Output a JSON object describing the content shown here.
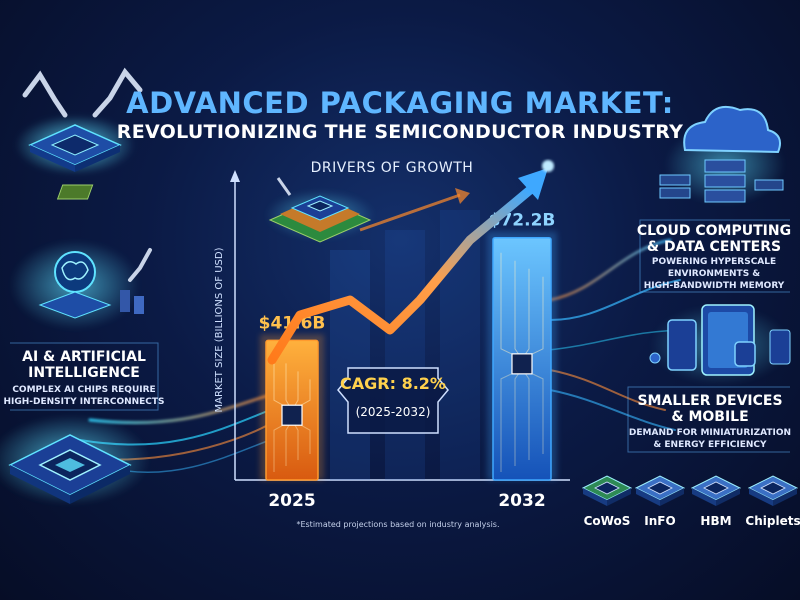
{
  "title": {
    "line1": "ADVANCED PACKAGING MARKET:",
    "line2": "REVOLUTIONIZING THE SEMICONDUCTOR INDUSTRY"
  },
  "drivers_heading": "DRIVERS OF GROWTH",
  "left_panel": {
    "title_line1": "AI & ARTIFICIAL",
    "title_line2": "INTELLIGENCE",
    "sub_line1": "COMPLEX AI CHIPS REQUIRE",
    "sub_line2": "HIGH-DENSITY INTERCONNECTS"
  },
  "right_panel_top": {
    "title_line1": "CLOUD COMPUTING",
    "title_line2": "& DATA CENTERS",
    "sub_line1": "POWERING HYPERSCALE",
    "sub_line2": "ENVIRONMENTS &",
    "sub_line3": "HIGH-BANDWIDTH MEMORY"
  },
  "right_panel_bottom": {
    "title_line1": "SMALLER DEVICES",
    "title_line2": "& MOBILE",
    "sub_line1": "DEMAND FOR MINIATURIZATION",
    "sub_line2": "& ENERGY EFFICIENCY"
  },
  "technologies": [
    "CoWoS",
    "InFO",
    "HBM",
    "Chiplets"
  ],
  "cagr": {
    "label": "CAGR: 8.2%",
    "range": "(2025-2032)"
  },
  "footnote": "*Estimated projections based on industry analysis.",
  "colors": {
    "title_blue": "#5fb6ff",
    "bar_2025": "#ff9a2e",
    "bar_2032": "#3fa8ff",
    "cagr_gold": "#ffd14d",
    "arrow_orange": "#ff8a2a"
  },
  "chart_data": {
    "type": "bar",
    "categories": [
      "2025",
      "2032"
    ],
    "values": [
      41.6,
      72.2
    ],
    "value_labels": [
      "$41.6B",
      "$72.2B"
    ],
    "title": "",
    "xlabel": "",
    "ylabel": "MARKET SIZE (BILLIONS OF USD)",
    "ylim": [
      0,
      90
    ],
    "grid": false,
    "legend": "none"
  }
}
